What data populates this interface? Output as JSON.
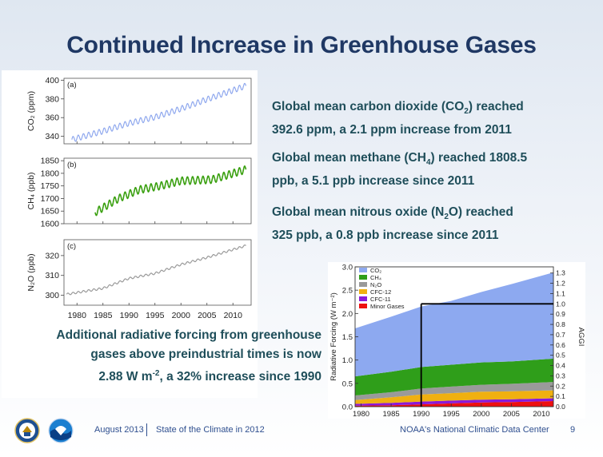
{
  "title": "Continued Increase in Greenhouse Gases",
  "statements": {
    "co2": {
      "pre": "Global mean carbon dioxide (CO",
      "sub": "2",
      "post": ") reached",
      "line2": "392.6 ppm, a 2.1 ppm increase from 2011"
    },
    "ch4": {
      "pre": "Global mean methane (CH",
      "sub": "4",
      "post": ") reached 1808.5",
      "line2": "ppb, a 5.1 ppb increase since 2011"
    },
    "n2o": {
      "pre": "Global mean nitrous oxide (N",
      "sub": "2",
      "post": "O) reached",
      "line2": "325 ppb, a 0.8 ppb increase since 2011"
    }
  },
  "forcing_text": {
    "line1": "Additional radiative forcing from greenhouse",
    "line2": "gases above preindustrial times is now",
    "line3_pre": "2.88 W m",
    "line3_sup": "-2",
    "line3_post": ", a 32% increase since 1990"
  },
  "footer": {
    "date": "August 2013",
    "report": "State of the Climate in 2012",
    "org": "NOAA's National Climatic Data Center",
    "page": "9"
  },
  "chart_data": [
    {
      "type": "line",
      "panel": "(a)",
      "ylabel": "CO₂ (ppm)",
      "ylim": [
        332,
        402
      ],
      "yticks": [
        340,
        360,
        380,
        400
      ],
      "x": [
        1979,
        1985,
        1990,
        1995,
        2000,
        2005,
        2012.5
      ],
      "values": [
        336.5,
        345.5,
        354,
        360.5,
        369.5,
        379.5,
        394
      ],
      "seasonal_amplitude": 3,
      "color": "#8fa8ee"
    },
    {
      "type": "line",
      "panel": "(b)",
      "ylabel": "CH₄ (ppb)",
      "ylim": [
        1600,
        1860
      ],
      "yticks": [
        1600,
        1650,
        1700,
        1750,
        1800,
        1850
      ],
      "x": [
        1983.5,
        1988,
        1992,
        1996,
        2000,
        2006,
        2012.5
      ],
      "values": [
        1645,
        1700,
        1735,
        1750,
        1770,
        1775,
        1815
      ],
      "seasonal_amplitude": 15,
      "color": "#3aa010"
    },
    {
      "type": "line",
      "panel": "(c)",
      "ylabel": "N₂O (ppb)",
      "ylim": [
        295,
        328
      ],
      "yticks": [
        300,
        310,
        320
      ],
      "x": [
        1978,
        1985,
        1990,
        1995,
        2000,
        2005,
        2012.5
      ],
      "values": [
        300.5,
        303.5,
        308.5,
        311,
        315.5,
        319,
        325
      ],
      "seasonal_amplitude": 0.5,
      "color": "#9a9a9a"
    },
    {
      "type": "area",
      "ylabel": "Radiative Forcing (W m⁻²)",
      "y2label": "AGGI",
      "ylim": [
        0,
        3
      ],
      "yticks": [
        0.0,
        0.5,
        1.0,
        1.5,
        2.0,
        2.5,
        3.0
      ],
      "ytick_labels": [
        "0.0",
        "0.5",
        "1.0",
        "1.5",
        "2.0",
        "2.5",
        "3.0"
      ],
      "y2lim": [
        0,
        1.36
      ],
      "y2ticks": [
        0.0,
        0.1,
        0.2,
        0.3,
        0.4,
        0.5,
        0.6,
        0.7,
        0.8,
        0.9,
        1.0,
        1.1,
        1.2,
        1.3
      ],
      "y2tick_labels": [
        "0.0",
        "0.1",
        "0.2",
        "0.3",
        "0.4",
        "0.5",
        "0.6",
        "0.7",
        "0.8",
        "0.9",
        "1.0",
        "1.1",
        "1.2",
        "1.3"
      ],
      "xlim": [
        1979,
        2012
      ],
      "xticks": [
        1980,
        1985,
        1990,
        1995,
        2000,
        2005,
        2010
      ],
      "x": [
        1979,
        1985,
        1990,
        1995,
        2000,
        2005,
        2012
      ],
      "series": [
        {
          "name": "CO₂",
          "color": "#8da9f0",
          "values": [
            1.03,
            1.18,
            1.3,
            1.37,
            1.51,
            1.66,
            1.85
          ]
        },
        {
          "name": "CH₄",
          "color": "#2f9e1a",
          "values": [
            0.41,
            0.44,
            0.46,
            0.47,
            0.48,
            0.48,
            0.5
          ]
        },
        {
          "name": "N₂O",
          "color": "#9a9a9a",
          "values": [
            0.1,
            0.11,
            0.13,
            0.14,
            0.15,
            0.16,
            0.18
          ]
        },
        {
          "name": "CFC-12",
          "color": "#f0b010",
          "values": [
            0.08,
            0.12,
            0.15,
            0.16,
            0.17,
            0.17,
            0.17
          ]
        },
        {
          "name": "CFC-11",
          "color": "#8a1ad8",
          "values": [
            0.04,
            0.05,
            0.06,
            0.06,
            0.06,
            0.06,
            0.06
          ]
        },
        {
          "name": "Minor Gases",
          "color": "#ee1010",
          "values": [
            0.02,
            0.03,
            0.05,
            0.07,
            0.09,
            0.1,
            0.12
          ]
        }
      ],
      "annotation": {
        "x": 1990,
        "y2": 1.0
      }
    }
  ]
}
